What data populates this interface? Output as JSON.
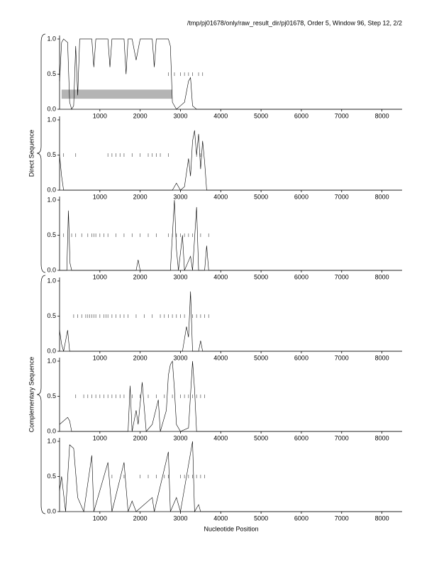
{
  "header": {
    "title": "/tmp/pj01678/only/raw_result_dir/pj01678, Order 5, Window 96, Step 12, 2/2",
    "x_label": "Nucleotide Position",
    "group_labels": [
      "Direct Sequence",
      "Complementary Sequence"
    ]
  },
  "chart_data": [
    {
      "type": "line",
      "color": "#000000",
      "marker_color": "#555555",
      "marker_y": 0.5,
      "xlim": [
        0,
        8500
      ],
      "ylim": [
        0,
        1.05
      ],
      "xticks": [
        1000,
        2000,
        3000,
        4000,
        5000,
        6000,
        7000,
        8000
      ],
      "yticks": [
        {
          "value": 0,
          "label": "0.0"
        },
        {
          "value": 0.5,
          "label": "0.5"
        },
        {
          "value": 1,
          "label": "1.0"
        }
      ],
      "band": {
        "color": "#b4b4b4",
        "x": [
          50,
          2800
        ],
        "y": [
          0.15,
          0.28
        ]
      },
      "x": [
        0,
        50,
        100,
        200,
        250,
        300,
        350,
        400,
        450,
        500,
        600,
        700,
        800,
        850,
        900,
        1000,
        1100,
        1200,
        1250,
        1300,
        1400,
        1500,
        1600,
        1650,
        1700,
        1800,
        1900,
        2000,
        2100,
        2200,
        2300,
        2350,
        2400,
        2500,
        2600,
        2700,
        2750,
        2800,
        2900,
        3000,
        3100,
        3200,
        3250,
        3300,
        3400,
        3500,
        8500
      ],
      "values": [
        0.4,
        0.95,
        1,
        0.95,
        0.1,
        0,
        0.05,
        0.9,
        0.2,
        1,
        1,
        1,
        1,
        0.6,
        1,
        1,
        1,
        1,
        0.6,
        1,
        1,
        1,
        1,
        0.5,
        1,
        1,
        0.7,
        1,
        1,
        1,
        1,
        0.6,
        1,
        1,
        1,
        1,
        0.9,
        0.1,
        0,
        0.05,
        0.1,
        0.4,
        0.45,
        0.05,
        0,
        0,
        0
      ],
      "markers": [
        2700,
        2850,
        3000,
        3100,
        3200,
        3300,
        3450,
        3550
      ]
    },
    {
      "type": "line",
      "color": "#000000",
      "marker_color": "#555555",
      "marker_y": 0.5,
      "xlim": [
        0,
        8500
      ],
      "ylim": [
        0,
        1.05
      ],
      "xticks": [
        1000,
        2000,
        3000,
        4000,
        5000,
        6000,
        7000,
        8000
      ],
      "yticks": [
        {
          "value": 0,
          "label": "0.0"
        },
        {
          "value": 0.5,
          "label": "0.5"
        },
        {
          "value": 1,
          "label": "1.0"
        }
      ],
      "x": [
        0,
        50,
        100,
        2700,
        2800,
        2900,
        3000,
        3100,
        3200,
        3250,
        3300,
        3350,
        3400,
        3450,
        3500,
        3550,
        3600,
        3650,
        8500
      ],
      "values": [
        0.5,
        0.2,
        0,
        0,
        0,
        0.1,
        0,
        0.05,
        0.45,
        0.2,
        0.7,
        0.85,
        0.5,
        0.8,
        0.3,
        0.7,
        0.4,
        0,
        0
      ],
      "markers": [
        100,
        400,
        1200,
        1300,
        1400,
        1500,
        1600,
        1800,
        2000,
        2200,
        2300,
        2400,
        2500,
        2700,
        3400,
        3500
      ]
    },
    {
      "type": "line",
      "color": "#000000",
      "marker_color": "#555555",
      "marker_y": 0.5,
      "xlim": [
        0,
        8500
      ],
      "ylim": [
        0,
        1.05
      ],
      "xticks": [
        1000,
        2000,
        3000,
        4000,
        5000,
        6000,
        7000,
        8000
      ],
      "yticks": [
        {
          "value": 0,
          "label": "0.0"
        },
        {
          "value": 0.5,
          "label": "0.5"
        },
        {
          "value": 1,
          "label": "1.0"
        }
      ],
      "x": [
        0,
        180,
        220,
        260,
        300,
        1900,
        1950,
        2000,
        2750,
        2850,
        2900,
        2950,
        3050,
        3100,
        3250,
        3300,
        3400,
        3450,
        3600,
        3650,
        3700,
        8500
      ],
      "values": [
        0,
        0,
        0.85,
        0.1,
        0,
        0,
        0.15,
        0,
        0,
        1,
        0.3,
        0,
        0.5,
        0,
        0.2,
        0,
        0.9,
        0,
        0,
        0.35,
        0,
        0
      ],
      "markers": [
        100,
        300,
        400,
        550,
        700,
        800,
        850,
        900,
        1000,
        1100,
        1200,
        1400,
        1600,
        1800,
        2000,
        2200,
        2400,
        2700,
        2800,
        2900,
        3000,
        3100,
        3200,
        3300,
        3500,
        3700
      ]
    },
    {
      "type": "line",
      "color": "#000000",
      "marker_color": "#555555",
      "marker_y": 0.5,
      "xlim": [
        0,
        8500
      ],
      "ylim": [
        0,
        1.05
      ],
      "xticks": [
        1000,
        2000,
        3000,
        4000,
        5000,
        6000,
        7000,
        8000
      ],
      "yticks": [
        {
          "value": 0,
          "label": "0.0"
        },
        {
          "value": 0.5,
          "label": "0.5"
        },
        {
          "value": 1,
          "label": "1.0"
        }
      ],
      "x": [
        0,
        50,
        100,
        200,
        250,
        3050,
        3150,
        3200,
        3250,
        3300,
        3450,
        3500,
        3550,
        8500
      ],
      "values": [
        0.3,
        0.1,
        0,
        0.3,
        0,
        0,
        0.35,
        0.2,
        0.85,
        0,
        0,
        0.15,
        0,
        0
      ],
      "markers": [
        350,
        450,
        550,
        650,
        700,
        750,
        800,
        850,
        900,
        1000,
        1100,
        1150,
        1200,
        1300,
        1400,
        1500,
        1600,
        1700,
        1900,
        2100,
        2300,
        2500,
        2600,
        2700,
        2800,
        2900,
        3000,
        3100,
        3300,
        3400,
        3500,
        3600,
        3700
      ]
    },
    {
      "type": "line",
      "color": "#000000",
      "marker_color": "#555555",
      "marker_y": 0.5,
      "xlim": [
        0,
        8500
      ],
      "ylim": [
        0,
        1.05
      ],
      "xticks": [
        1000,
        2000,
        3000,
        4000,
        5000,
        6000,
        7000,
        8000
      ],
      "yticks": [
        {
          "value": 0,
          "label": "0.0"
        },
        {
          "value": 0.5,
          "label": "0.5"
        },
        {
          "value": 1,
          "label": "1.0"
        }
      ],
      "x": [
        0,
        200,
        250,
        300,
        1700,
        1750,
        1800,
        1900,
        1950,
        2050,
        2150,
        2300,
        2450,
        2500,
        2650,
        2700,
        2750,
        2800,
        2850,
        2900,
        3000,
        3200,
        3300,
        3350,
        3400,
        8500
      ],
      "values": [
        0.1,
        0.2,
        0.15,
        0,
        0,
        0.65,
        0,
        0.3,
        0.1,
        0.7,
        0,
        0.1,
        0.45,
        0,
        0.3,
        0.8,
        0.95,
        1,
        0.6,
        0.1,
        0,
        0.05,
        1,
        0.6,
        0,
        0
      ],
      "markers": [
        400,
        600,
        700,
        800,
        900,
        1000,
        1100,
        1200,
        1300,
        1400,
        1500,
        1600,
        1800,
        2000,
        2200,
        2400,
        2600,
        2800,
        3000,
        3100,
        3200,
        3300,
        3400,
        3500,
        3600
      ]
    },
    {
      "type": "line",
      "color": "#000000",
      "marker_color": "#555555",
      "marker_y": 0.5,
      "xlim": [
        0,
        8500
      ],
      "ylim": [
        0,
        1.05
      ],
      "xticks": [
        1000,
        2000,
        3000,
        4000,
        5000,
        6000,
        7000,
        8000
      ],
      "yticks": [
        {
          "value": 0,
          "label": "0.0"
        },
        {
          "value": 0.5,
          "label": "0.5"
        },
        {
          "value": 1,
          "label": "1.0"
        }
      ],
      "x": [
        0,
        50,
        150,
        250,
        350,
        450,
        600,
        800,
        850,
        1200,
        1300,
        1600,
        1700,
        1800,
        1900,
        2300,
        2350,
        2700,
        2750,
        2900,
        3000,
        3300,
        3350,
        3450,
        3500,
        8500
      ],
      "values": [
        0.3,
        0.5,
        0,
        0.95,
        0.9,
        0.2,
        0,
        0.8,
        0,
        0.7,
        0,
        0.7,
        0,
        0.15,
        0,
        0.2,
        0,
        0.85,
        0,
        0.2,
        0,
        1,
        0,
        0.1,
        0,
        0
      ],
      "markers": [
        1300,
        1600,
        2000,
        2200,
        2400,
        2600,
        2700,
        3000,
        3100,
        3200,
        3300,
        3400,
        3500,
        3600
      ]
    }
  ]
}
